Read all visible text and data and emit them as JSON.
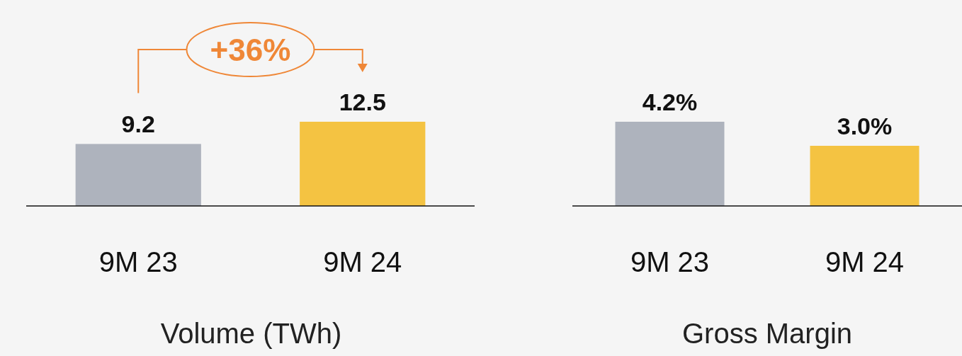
{
  "chart_data": [
    {
      "type": "bar",
      "categories": [
        "9M 23",
        "9M 24"
      ],
      "values": [
        9.2,
        12.5
      ],
      "colors": [
        "#aeb3bd",
        "#f4c342"
      ],
      "data_labels": true,
      "xlabel": "Volume (TWh)",
      "annotations": [
        "+36%"
      ]
    },
    {
      "type": "bar",
      "categories": [
        "9M 23",
        "9M 24"
      ],
      "values": [
        4.2,
        3.0
      ],
      "colors": [
        "#aeb3bd",
        "#f4c342"
      ],
      "value_labels": [
        "4.2%",
        "3.0%"
      ],
      "xlabel": "Gross Margin"
    }
  ]
}
